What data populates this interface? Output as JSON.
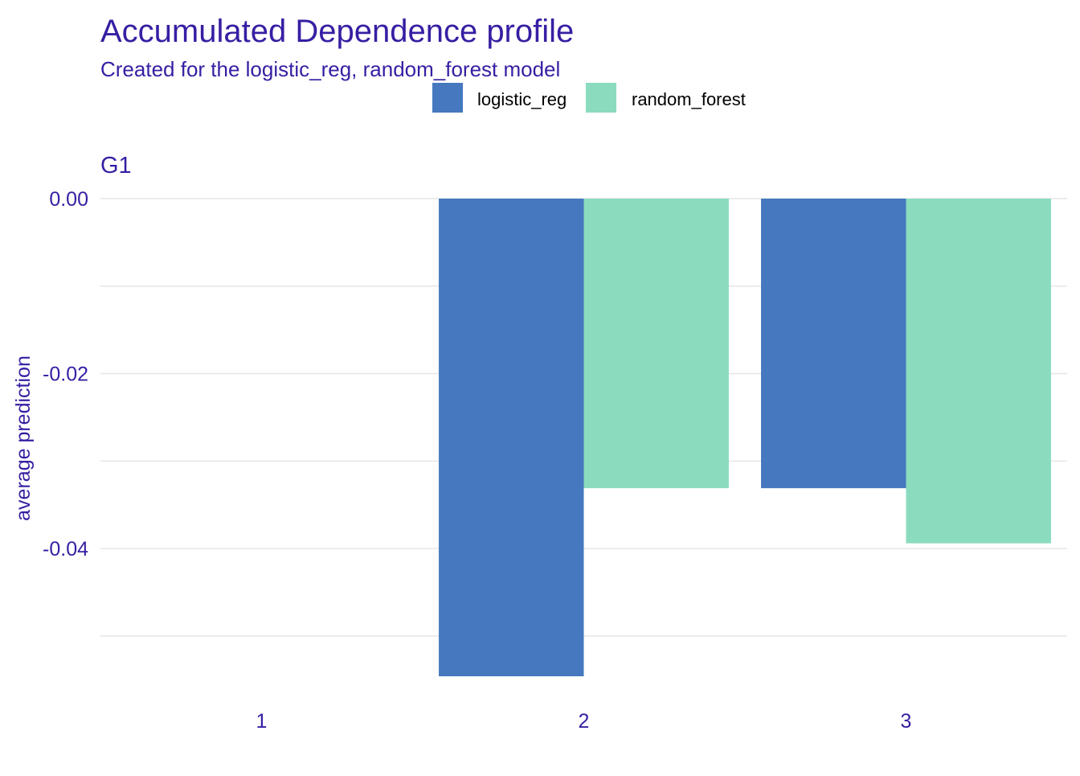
{
  "chart_data": {
    "type": "bar",
    "title": "Accumulated Dependence profile",
    "subtitle": "Created for the logistic_reg, random_forest model",
    "panel_title": "G1",
    "xlabel": "",
    "ylabel": "average prediction",
    "categories": [
      "1",
      "2",
      "3"
    ],
    "series": [
      {
        "name": "logistic_reg",
        "color": "#4578bf",
        "values": [
          0,
          -0.0546,
          -0.0331
        ]
      },
      {
        "name": "random_forest",
        "color": "#8bdcbe",
        "values": [
          0,
          -0.0331,
          -0.0394
        ]
      }
    ],
    "yticks": [
      {
        "value": 0,
        "label": "0.00"
      },
      {
        "value": -0.02,
        "label": "-0.02"
      },
      {
        "value": -0.04,
        "label": "-0.04"
      }
    ],
    "minor_gridlines": [
      -0.01,
      -0.03,
      -0.05
    ],
    "ylim": [
      -0.0546,
      0
    ],
    "grid": true,
    "legend_position": "top-center",
    "text_color": "#371ea3",
    "grid_color": "#e6e6e6"
  }
}
